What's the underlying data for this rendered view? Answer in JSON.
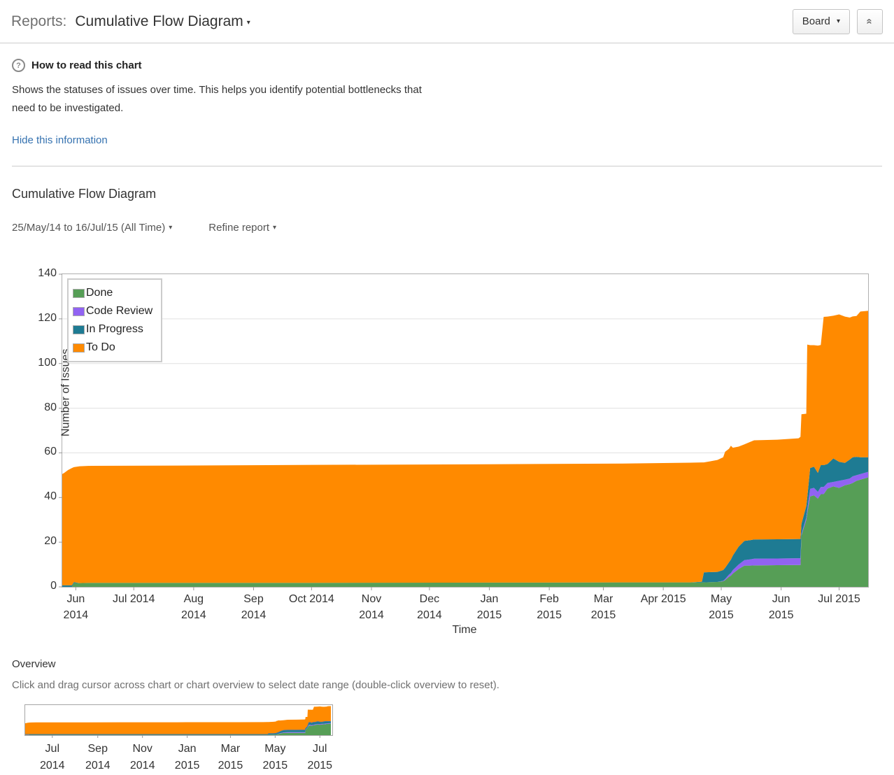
{
  "header": {
    "section_label": "Reports:",
    "report_title": "Cumulative Flow Diagram",
    "board_button": "Board",
    "caret": "▾",
    "collapse_glyph": "«"
  },
  "help": {
    "icon": "?",
    "title": "How to read this chart",
    "description": "Shows the statuses of issues over time. This helps you identify potential bottlenecks that need to be investigated.",
    "hide_link": "Hide this information"
  },
  "report": {
    "heading": "Cumulative Flow Diagram",
    "date_range": "25/May/14 to 16/Jul/15 (All Time)",
    "refine_label": "Refine report"
  },
  "overview": {
    "heading": "Overview",
    "instruction": "Click and drag cursor across chart or chart overview to select date range (double-click overview to reset)."
  },
  "chart_data": {
    "type": "area",
    "stacked": true,
    "title": "Cumulative Flow Diagram",
    "xlabel": "Time",
    "ylabel": "Number of Issues",
    "ylim": [
      0,
      140
    ],
    "yticks": [
      0,
      20,
      40,
      60,
      80,
      100,
      120,
      140
    ],
    "grid": "horizontal",
    "legend_position": "top-left",
    "x_start": "25/May/14",
    "x_end": "16/Jul/15",
    "x_span_days": 417,
    "series": [
      {
        "name": "Done",
        "color": "#569e56"
      },
      {
        "name": "Code Review",
        "color": "#9163f2"
      },
      {
        "name": "In Progress",
        "color": "#1e7b93"
      },
      {
        "name": "To Do",
        "color": "#ff8a00"
      }
    ],
    "points_format": [
      "day",
      "done",
      "code_review",
      "in_progress",
      "total"
    ],
    "points": [
      [
        0,
        0,
        0,
        0.7,
        50.5
      ],
      [
        1,
        0,
        0,
        0.7,
        51
      ],
      [
        3,
        0,
        0,
        0.7,
        52.3
      ],
      [
        5,
        0,
        0,
        0.7,
        53.2
      ],
      [
        6,
        1.7,
        0,
        0.4,
        53.6
      ],
      [
        9,
        1.7,
        0,
        0,
        54
      ],
      [
        15,
        1.8,
        0,
        0,
        54.2
      ],
      [
        60,
        1.8,
        0,
        0,
        54.3
      ],
      [
        130,
        1.8,
        0,
        0,
        54.6
      ],
      [
        220,
        1.9,
        0,
        0,
        54.9
      ],
      [
        290,
        2,
        0,
        0,
        55.2
      ],
      [
        325,
        2,
        0,
        0,
        55.6
      ],
      [
        331,
        2,
        0,
        0.3,
        55.7
      ],
      [
        332,
        2,
        0,
        4.5,
        55.7
      ],
      [
        339,
        2.2,
        0,
        4.5,
        56.8
      ],
      [
        342,
        2.5,
        0.2,
        4.8,
        58
      ],
      [
        343,
        3,
        0.5,
        5,
        60.5
      ],
      [
        345,
        4.5,
        1,
        5.5,
        61.8
      ],
      [
        346,
        5,
        1.2,
        6,
        63.2
      ],
      [
        347,
        6,
        1.5,
        6.5,
        62.3
      ],
      [
        350,
        8,
        2,
        8,
        62.8
      ],
      [
        353,
        9.5,
        2.5,
        8.6,
        63.8
      ],
      [
        356,
        9.5,
        2.8,
        8.6,
        64.9
      ],
      [
        358,
        9.6,
        3,
        8.6,
        65.6
      ],
      [
        370,
        9.7,
        3,
        8.6,
        65.9
      ],
      [
        381,
        9.8,
        3,
        8.6,
        66.5
      ],
      [
        382,
        9.8,
        3,
        8.6,
        67.2
      ],
      [
        382.5,
        23,
        0.7,
        4.5,
        77.3
      ],
      [
        385,
        30,
        1,
        5.2,
        77.5
      ],
      [
        385.5,
        33,
        1.5,
        5.5,
        108.5
      ],
      [
        387,
        40.5,
        3.4,
        9.3,
        108.2
      ],
      [
        389,
        41,
        3.3,
        9.5,
        108.2
      ],
      [
        391,
        39.5,
        3,
        8.5,
        108
      ],
      [
        392.5,
        41.5,
        3.2,
        9.8,
        108.3
      ],
      [
        394,
        41.5,
        3.2,
        9.8,
        120.9
      ],
      [
        396,
        44,
        2.5,
        8.5,
        121
      ],
      [
        399,
        45,
        2,
        10.5,
        121.4
      ],
      [
        402,
        44.3,
        3.2,
        8.5,
        122
      ],
      [
        405,
        45.5,
        2.5,
        7.5,
        121
      ],
      [
        407.5,
        46,
        2.5,
        8.5,
        120.6
      ],
      [
        409,
        46.5,
        3,
        8.5,
        121.1
      ],
      [
        411,
        47.5,
        2.5,
        8.2,
        121.3
      ],
      [
        413,
        48,
        2.5,
        7.5,
        123.3
      ],
      [
        417,
        49,
        2.5,
        6.5,
        123.6
      ]
    ],
    "xticks": [
      {
        "day": 7,
        "lines": [
          "Jun",
          "2014"
        ]
      },
      {
        "day": 37,
        "lines": [
          "Jul 2014"
        ]
      },
      {
        "day": 68,
        "lines": [
          "Aug",
          "2014"
        ]
      },
      {
        "day": 99,
        "lines": [
          "Sep",
          "2014"
        ]
      },
      {
        "day": 129,
        "lines": [
          "Oct 2014"
        ]
      },
      {
        "day": 160,
        "lines": [
          "Nov",
          "2014"
        ]
      },
      {
        "day": 190,
        "lines": [
          "Dec",
          "2014"
        ]
      },
      {
        "day": 221,
        "lines": [
          "Jan",
          "2015"
        ]
      },
      {
        "day": 252,
        "lines": [
          "Feb",
          "2015"
        ]
      },
      {
        "day": 280,
        "lines": [
          "Mar",
          "2015"
        ]
      },
      {
        "day": 311,
        "lines": [
          "Apr 2015"
        ]
      },
      {
        "day": 341,
        "lines": [
          "May",
          "2015"
        ]
      },
      {
        "day": 372,
        "lines": [
          "Jun",
          "2015"
        ]
      },
      {
        "day": 402,
        "lines": [
          "Jul 2015"
        ]
      }
    ],
    "overview_xticks": [
      {
        "day": 37,
        "lines": [
          "Jul",
          "2014"
        ]
      },
      {
        "day": 99,
        "lines": [
          "Sep",
          "2014"
        ]
      },
      {
        "day": 160,
        "lines": [
          "Nov",
          "2014"
        ]
      },
      {
        "day": 221,
        "lines": [
          "Jan",
          "2015"
        ]
      },
      {
        "day": 280,
        "lines": [
          "Mar",
          "2015"
        ]
      },
      {
        "day": 341,
        "lines": [
          "May",
          "2015"
        ]
      },
      {
        "day": 402,
        "lines": [
          "Jul",
          "2015"
        ]
      }
    ],
    "colors": {
      "grid": "#e0e0e0",
      "axis": "#b0b0b0",
      "tick": "#999999",
      "link": "#3572b0"
    }
  }
}
